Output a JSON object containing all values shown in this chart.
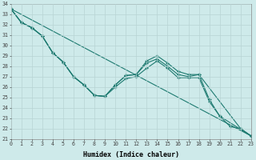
{
  "xlabel": "Humidex (Indice chaleur)",
  "xlim": [
    0,
    23
  ],
  "ylim": [
    21,
    34
  ],
  "yticks": [
    21,
    22,
    23,
    24,
    25,
    26,
    27,
    28,
    29,
    30,
    31,
    32,
    33,
    34
  ],
  "xticks": [
    0,
    1,
    2,
    3,
    4,
    5,
    6,
    7,
    8,
    9,
    10,
    11,
    12,
    13,
    14,
    15,
    16,
    17,
    18,
    19,
    20,
    21,
    22,
    23
  ],
  "line_color": "#1d7a70",
  "bg_color": "#ceeaea",
  "grid_color": "#b8d4d4",
  "lines": [
    {
      "x": [
        0,
        1,
        2,
        3,
        4,
        5,
        6,
        7,
        8,
        9,
        10,
        11,
        12,
        13,
        14,
        15,
        16,
        17,
        18,
        22,
        23
      ],
      "y": [
        33.5,
        32.2,
        31.7,
        30.9,
        29.3,
        28.4,
        27.0,
        26.2,
        25.2,
        25.1,
        26.2,
        27.1,
        27.2,
        28.5,
        29.0,
        28.3,
        27.5,
        27.2,
        27.2,
        22.0,
        21.3
      ],
      "has_marker": true
    },
    {
      "x": [
        0,
        1,
        2,
        3,
        4,
        5,
        6,
        7,
        8,
        9,
        10,
        11,
        12,
        13,
        14,
        15,
        16,
        17,
        18,
        19,
        20,
        23
      ],
      "y": [
        33.5,
        32.2,
        31.7,
        30.9,
        29.3,
        28.4,
        27.0,
        26.2,
        25.2,
        25.1,
        26.2,
        27.1,
        27.2,
        28.3,
        28.7,
        28.0,
        27.2,
        27.0,
        27.2,
        24.8,
        23.2,
        21.3
      ],
      "has_marker": true
    },
    {
      "x": [
        0,
        1,
        2,
        3,
        4,
        5,
        6,
        7,
        8,
        9,
        10,
        11,
        12,
        13,
        14,
        15,
        16,
        17,
        18,
        19,
        20,
        21,
        22,
        23
      ],
      "y": [
        33.5,
        32.2,
        31.7,
        30.9,
        29.3,
        28.4,
        27.0,
        26.2,
        25.2,
        25.1,
        26.0,
        26.8,
        27.0,
        27.8,
        28.5,
        27.8,
        26.9,
        26.9,
        26.9,
        24.6,
        23.2,
        22.2,
        22.0,
        21.3
      ],
      "has_marker": true
    },
    {
      "x": [
        0,
        23
      ],
      "y": [
        33.5,
        21.3
      ],
      "has_marker": false
    }
  ],
  "marker": "+",
  "markersize": 3.5,
  "linewidth": 0.8
}
